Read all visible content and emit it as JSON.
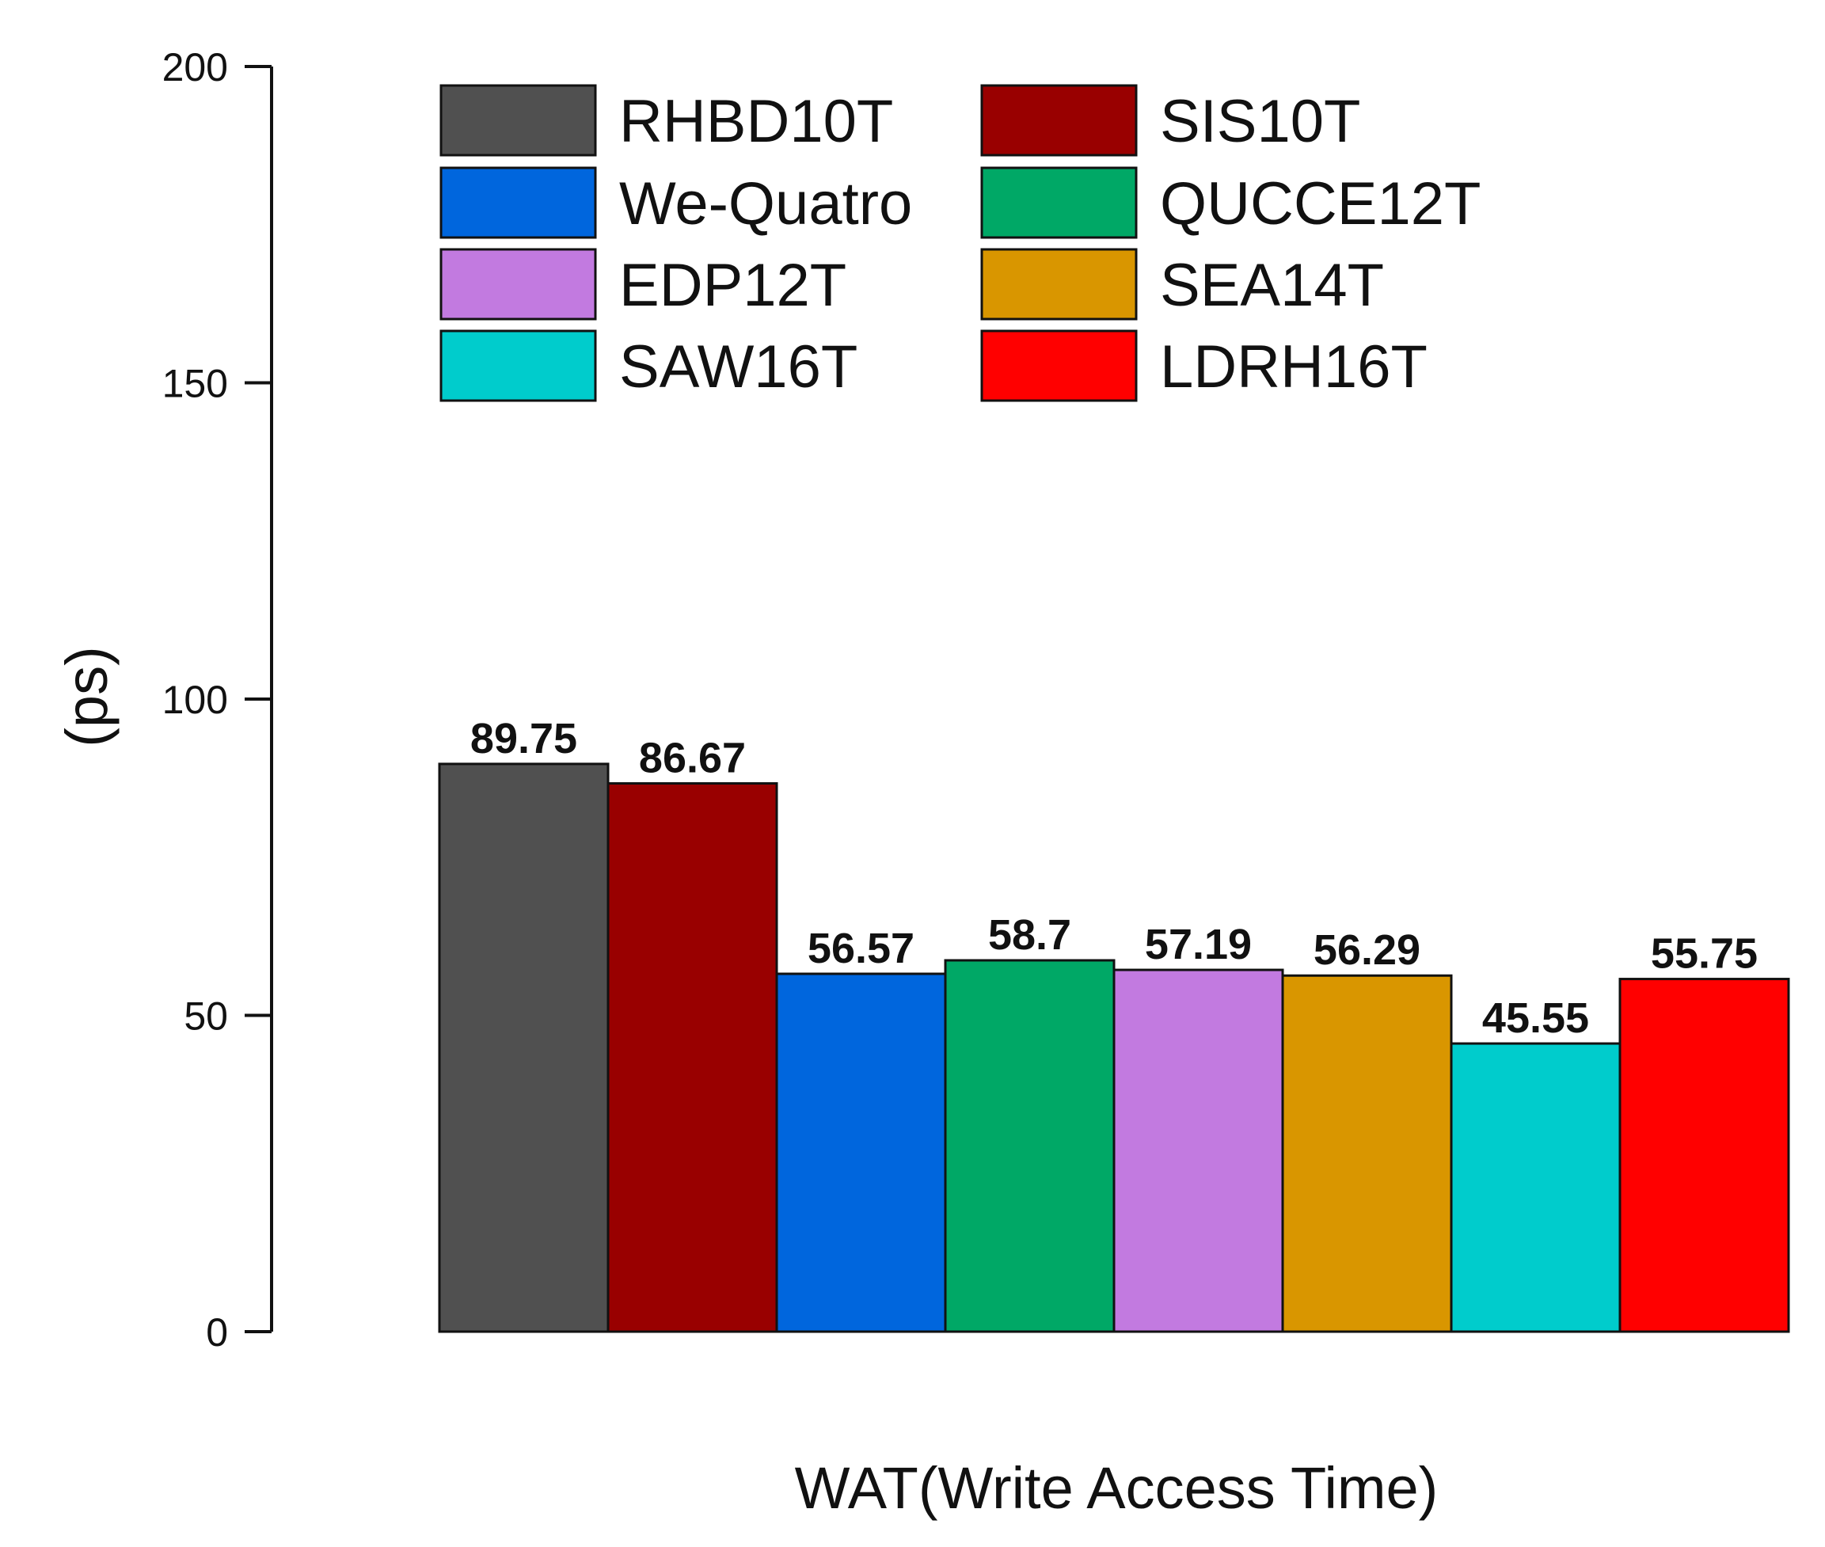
{
  "chart_data": {
    "type": "bar",
    "title": "",
    "xlabel": "WAT(Write Access Time)",
    "ylabel": "(ps)",
    "ylim": [
      0,
      200
    ],
    "yticks": [
      0,
      50,
      100,
      150,
      200
    ],
    "grid": false,
    "legend_position": "top",
    "series": [
      {
        "name": "RHBD10T",
        "value": 89.75,
        "label": "89.75",
        "color": "#505050"
      },
      {
        "name": "SIS10T",
        "value": 86.67,
        "label": "86.67",
        "color": "#990000"
      },
      {
        "name": "We-Quatro",
        "value": 56.57,
        "label": "56.57",
        "color": "#0066dd"
      },
      {
        "name": "QUCCE12T",
        "value": 58.7,
        "label": "58.7",
        "color": "#00a866"
      },
      {
        "name": "EDP12T",
        "value": 57.19,
        "label": "57.19",
        "color": "#c27ae0"
      },
      {
        "name": "SEA14T",
        "value": 56.29,
        "label": "56.29",
        "color": "#d99600"
      },
      {
        "name": "SAW16T",
        "value": 45.55,
        "label": "45.55",
        "color": "#00cccc"
      },
      {
        "name": "LDRH16T",
        "value": 55.75,
        "label": "55.75",
        "color": "#ff0000"
      }
    ]
  }
}
